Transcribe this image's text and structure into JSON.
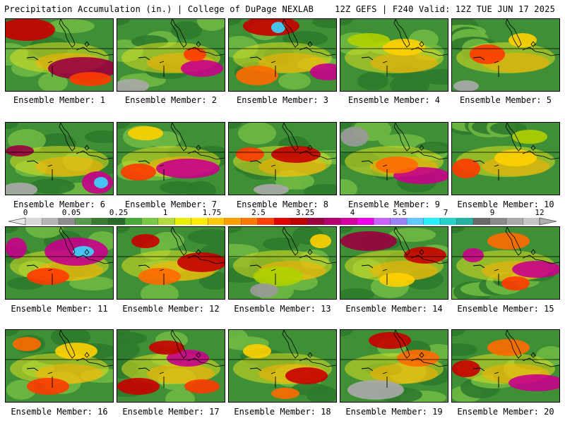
{
  "header": {
    "left": "Precipitation Accumulation (in.) | College of DuPage NEXLAB",
    "right": "12Z GEFS | F240 Valid: 12Z TUE JUN 17 2025"
  },
  "caption_prefix": "Ensemble Member: ",
  "members": [
    {
      "label": "Ensemble Member: 1",
      "max": "4",
      "blobs": [
        [
          110,
          70,
          50,
          16,
          "#9a0040"
        ],
        [
          30,
          15,
          40,
          16,
          "#c80000"
        ],
        [
          120,
          85,
          30,
          10,
          "#ff3a00"
        ]
      ]
    },
    {
      "label": "Ensemble Member: 2",
      "max": "7",
      "blobs": [
        [
          120,
          70,
          30,
          12,
          "#c8008a"
        ],
        [
          110,
          50,
          16,
          10,
          "#ff3a00"
        ],
        [
          20,
          95,
          25,
          10,
          "#aaaaaa"
        ]
      ]
    },
    {
      "label": "Ensemble Member: 3",
      "max": "7",
      "blobs": [
        [
          60,
          10,
          40,
          14,
          "#c80000"
        ],
        [
          70,
          12,
          10,
          8,
          "#3ad6ff"
        ],
        [
          140,
          75,
          25,
          12,
          "#c8008a"
        ],
        [
          40,
          80,
          30,
          14,
          "#ff6a00"
        ]
      ]
    },
    {
      "label": "Ensemble Member: 4",
      "max": "1.75",
      "blobs": [
        [
          90,
          40,
          30,
          12,
          "#ffd000"
        ],
        [
          40,
          30,
          30,
          10,
          "#b0d000"
        ]
      ]
    },
    {
      "label": "Ensemble Member: 5",
      "max": "2.5",
      "blobs": [
        [
          50,
          50,
          25,
          14,
          "#ff3a00"
        ],
        [
          20,
          95,
          18,
          8,
          "#aaaaaa"
        ],
        [
          100,
          30,
          20,
          10,
          "#ffd000"
        ]
      ]
    },
    {
      "label": "Ensemble Member: 6",
      "max": "7",
      "blobs": [
        [
          130,
          85,
          22,
          16,
          "#c8008a"
        ],
        [
          135,
          85,
          10,
          8,
          "#3ad6ff"
        ],
        [
          20,
          40,
          20,
          8,
          "#9a0040"
        ],
        [
          20,
          95,
          25,
          10,
          "#aaaaaa"
        ]
      ]
    },
    {
      "label": "Ensemble Member: 7",
      "max": "5.5",
      "blobs": [
        [
          100,
          65,
          45,
          14,
          "#c8008a"
        ],
        [
          30,
          70,
          25,
          12,
          "#ff3a00"
        ],
        [
          40,
          15,
          25,
          10,
          "#ffd000"
        ]
      ]
    },
    {
      "label": "Ensemble Member: 8",
      "max": "4",
      "blobs": [
        [
          95,
          45,
          35,
          12,
          "#c80000"
        ],
        [
          30,
          45,
          20,
          10,
          "#ff3a00"
        ],
        [
          60,
          95,
          25,
          8,
          "#aaaaaa"
        ]
      ]
    },
    {
      "label": "Ensemble Member: 9",
      "max": "4",
      "blobs": [
        [
          115,
          75,
          40,
          12,
          "#c8008a"
        ],
        [
          20,
          20,
          20,
          14,
          "#9a9a9a"
        ],
        [
          80,
          60,
          30,
          12,
          "#ff6a00"
        ]
      ]
    },
    {
      "label": "Ensemble Member: 10",
      "max": "2.5",
      "blobs": [
        [
          20,
          65,
          20,
          14,
          "#ff3a00"
        ],
        [
          90,
          50,
          30,
          12,
          "#ffd000"
        ],
        [
          110,
          20,
          25,
          10,
          "#b0d000"
        ]
      ]
    },
    {
      "label": "Ensemble Member: 11",
      "max": "7",
      "blobs": [
        [
          100,
          35,
          45,
          20,
          "#c8008a"
        ],
        [
          110,
          35,
          15,
          8,
          "#3ad6ff"
        ],
        [
          15,
          30,
          15,
          15,
          "#c8008a"
        ],
        [
          60,
          70,
          30,
          12,
          "#ff3a00"
        ]
      ]
    },
    {
      "label": "Ensemble Member: 12",
      "max": "4",
      "blobs": [
        [
          120,
          50,
          35,
          14,
          "#c80000"
        ],
        [
          60,
          70,
          30,
          12,
          "#ff6a00"
        ],
        [
          40,
          20,
          20,
          10,
          "#c80000"
        ]
      ]
    },
    {
      "label": "Ensemble Member: 13",
      "max": "1.75",
      "blobs": [
        [
          70,
          70,
          35,
          14,
          "#b0d000"
        ],
        [
          50,
          90,
          20,
          10,
          "#9a9a9a"
        ],
        [
          130,
          20,
          15,
          10,
          "#ffd000"
        ]
      ]
    },
    {
      "label": "Ensemble Member: 14",
      "max": "4",
      "blobs": [
        [
          40,
          20,
          40,
          14,
          "#9a0040"
        ],
        [
          120,
          40,
          30,
          12,
          "#c80000"
        ],
        [
          80,
          75,
          25,
          10,
          "#ffd000"
        ]
      ]
    },
    {
      "label": "Ensemble Member: 15",
      "max": "5.5",
      "blobs": [
        [
          120,
          60,
          35,
          12,
          "#c8008a"
        ],
        [
          30,
          40,
          15,
          10,
          "#c8008a"
        ],
        [
          80,
          20,
          30,
          12,
          "#ff6a00"
        ],
        [
          90,
          80,
          20,
          10,
          "#ff3a00"
        ]
      ]
    },
    {
      "label": "Ensemble Member: 16",
      "max": "2.5",
      "blobs": [
        [
          60,
          80,
          30,
          12,
          "#ff3a00"
        ],
        [
          100,
          30,
          30,
          12,
          "#ffd000"
        ],
        [
          30,
          20,
          20,
          10,
          "#ff6a00"
        ]
      ]
    },
    {
      "label": "Ensemble Member: 17",
      "max": "5.5",
      "blobs": [
        [
          100,
          40,
          30,
          12,
          "#c8008a"
        ],
        [
          70,
          25,
          25,
          10,
          "#c80000"
        ],
        [
          30,
          80,
          30,
          12,
          "#c80000"
        ],
        [
          120,
          80,
          25,
          10,
          "#ff3a00"
        ]
      ]
    },
    {
      "label": "Ensemble Member: 18",
      "max": "2.5",
      "blobs": [
        [
          110,
          65,
          30,
          12,
          "#c80000"
        ],
        [
          40,
          30,
          20,
          10,
          "#ffd000"
        ],
        [
          80,
          90,
          20,
          8,
          "#ff6a00"
        ]
      ]
    },
    {
      "label": "Ensemble Member: 19",
      "max": "4",
      "blobs": [
        [
          70,
          15,
          30,
          12,
          "#c80000"
        ],
        [
          50,
          85,
          40,
          14,
          "#aaaaaa"
        ],
        [
          110,
          40,
          30,
          12,
          "#ff6a00"
        ]
      ]
    },
    {
      "label": "Ensemble Member: 20",
      "max": "5.5",
      "blobs": [
        [
          120,
          75,
          40,
          12,
          "#c8008a"
        ],
        [
          20,
          55,
          20,
          12,
          "#c80000"
        ],
        [
          80,
          25,
          30,
          12,
          "#ff6a00"
        ]
      ]
    }
  ],
  "scale": {
    "ticks": [
      "0",
      "0.05",
      "0.25",
      "1",
      "1.75",
      "2.5",
      "3.25",
      "4",
      "5.5",
      "7",
      "9",
      "12"
    ],
    "colors": [
      "#d8d8d8",
      "#b4b4b4",
      "#8c8c8c",
      "#5a9a50",
      "#3a7a32",
      "#2a6a2a",
      "#4aa83a",
      "#7ac848",
      "#b0dc40",
      "#e6f000",
      "#ffea00",
      "#ffc800",
      "#ffa000",
      "#ff7800",
      "#ff4000",
      "#e00000",
      "#c00000",
      "#9a0040",
      "#b4006e",
      "#d400a0",
      "#f000e6",
      "#c864ff",
      "#9a82ff",
      "#64c8ff",
      "#28f0ff",
      "#28d0c8",
      "#28b0a0",
      "#6a6a6a",
      "#8a8a8a",
      "#aaaaaa",
      "#c4c4c4"
    ]
  }
}
